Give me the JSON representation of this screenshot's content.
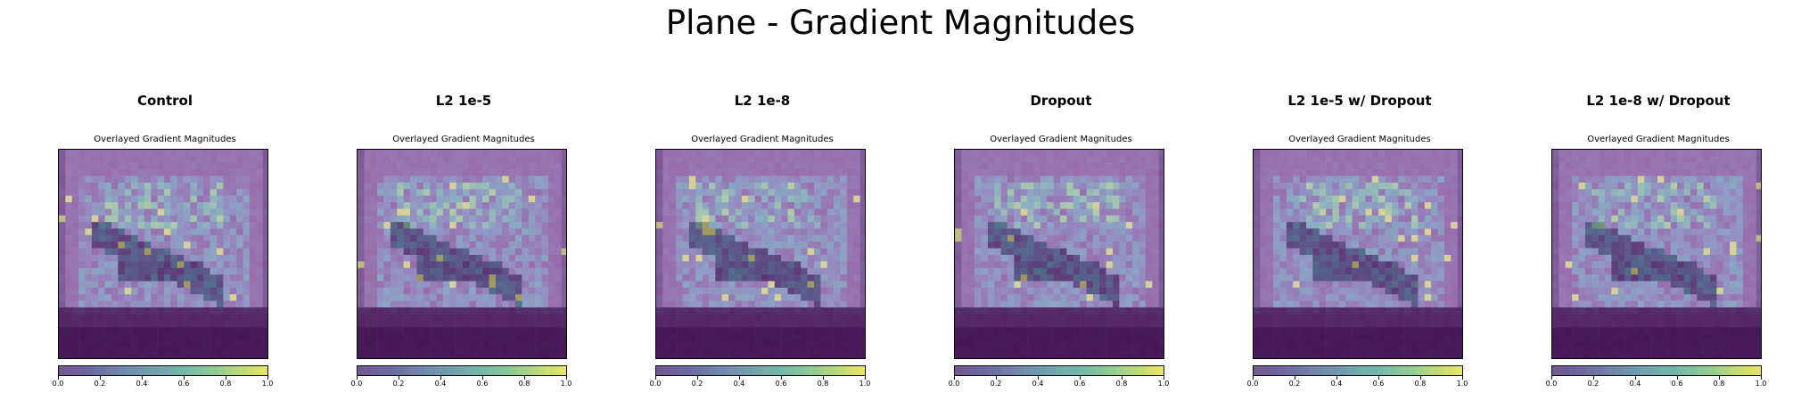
{
  "figure": {
    "title": "Plane - Gradient Magnitudes"
  },
  "panels": [
    {
      "title": "Control",
      "subtitle": "Overlayed Gradient Magnitudes"
    },
    {
      "title": "L2 1e-5",
      "subtitle": "Overlayed Gradient Magnitudes"
    },
    {
      "title": "L2 1e-8",
      "subtitle": "Overlayed Gradient Magnitudes"
    },
    {
      "title": "Dropout",
      "subtitle": "Overlayed Gradient Magnitudes"
    },
    {
      "title": "L2 1e-5 w/ Dropout",
      "subtitle": "Overlayed Gradient Magnitudes"
    },
    {
      "title": "L2 1e-8 w/ Dropout",
      "subtitle": "Overlayed Gradient Magnitudes"
    }
  ],
  "chart_data": [
    {
      "type": "heatmap",
      "title": "Control",
      "subtitle": "Overlayed Gradient Magnitudes",
      "grid_size": [
        32,
        32
      ],
      "colormap": "viridis",
      "overlay_alpha": 0.5,
      "colorbar": {
        "ticks": [
          "0.0",
          "0.2",
          "0.4",
          "0.6",
          "0.8",
          "1.0"
        ],
        "range": [
          0.0,
          1.0
        ]
      },
      "seed": 11
    },
    {
      "type": "heatmap",
      "title": "L2 1e-5",
      "subtitle": "Overlayed Gradient Magnitudes",
      "grid_size": [
        32,
        32
      ],
      "colormap": "viridis",
      "overlay_alpha": 0.5,
      "colorbar": {
        "ticks": [
          "0.0",
          "0.2",
          "0.4",
          "0.6",
          "0.8",
          "1.0"
        ],
        "range": [
          0.0,
          1.0
        ]
      },
      "seed": 23
    },
    {
      "type": "heatmap",
      "title": "L2 1e-8",
      "subtitle": "Overlayed Gradient Magnitudes",
      "grid_size": [
        32,
        32
      ],
      "colormap": "viridis",
      "overlay_alpha": 0.5,
      "colorbar": {
        "ticks": [
          "0.0",
          "0.2",
          "0.4",
          "0.6",
          "0.8",
          "1.0"
        ],
        "range": [
          0.0,
          1.0
        ]
      },
      "seed": 37
    },
    {
      "type": "heatmap",
      "title": "Dropout",
      "subtitle": "Overlayed Gradient Magnitudes",
      "grid_size": [
        32,
        32
      ],
      "colormap": "viridis",
      "overlay_alpha": 0.5,
      "colorbar": {
        "ticks": [
          "0.0",
          "0.2",
          "0.4",
          "0.6",
          "0.8",
          "1.0"
        ],
        "range": [
          0.0,
          1.0
        ]
      },
      "seed": 41
    },
    {
      "type": "heatmap",
      "title": "L2 1e-5 w/ Dropout",
      "subtitle": "Overlayed Gradient Magnitudes",
      "grid_size": [
        32,
        32
      ],
      "colormap": "viridis",
      "overlay_alpha": 0.5,
      "colorbar": {
        "ticks": [
          "0.0",
          "0.2",
          "0.4",
          "0.6",
          "0.8",
          "1.0"
        ],
        "range": [
          0.0,
          1.0
        ]
      },
      "seed": 53
    },
    {
      "type": "heatmap",
      "title": "L2 1e-8 w/ Dropout",
      "subtitle": "Overlayed Gradient Magnitudes",
      "grid_size": [
        32,
        32
      ],
      "colormap": "viridis",
      "overlay_alpha": 0.5,
      "colorbar": {
        "ticks": [
          "0.0",
          "0.2",
          "0.4",
          "0.6",
          "0.8",
          "1.0"
        ],
        "range": [
          0.0,
          1.0
        ]
      },
      "seed": 67
    }
  ]
}
